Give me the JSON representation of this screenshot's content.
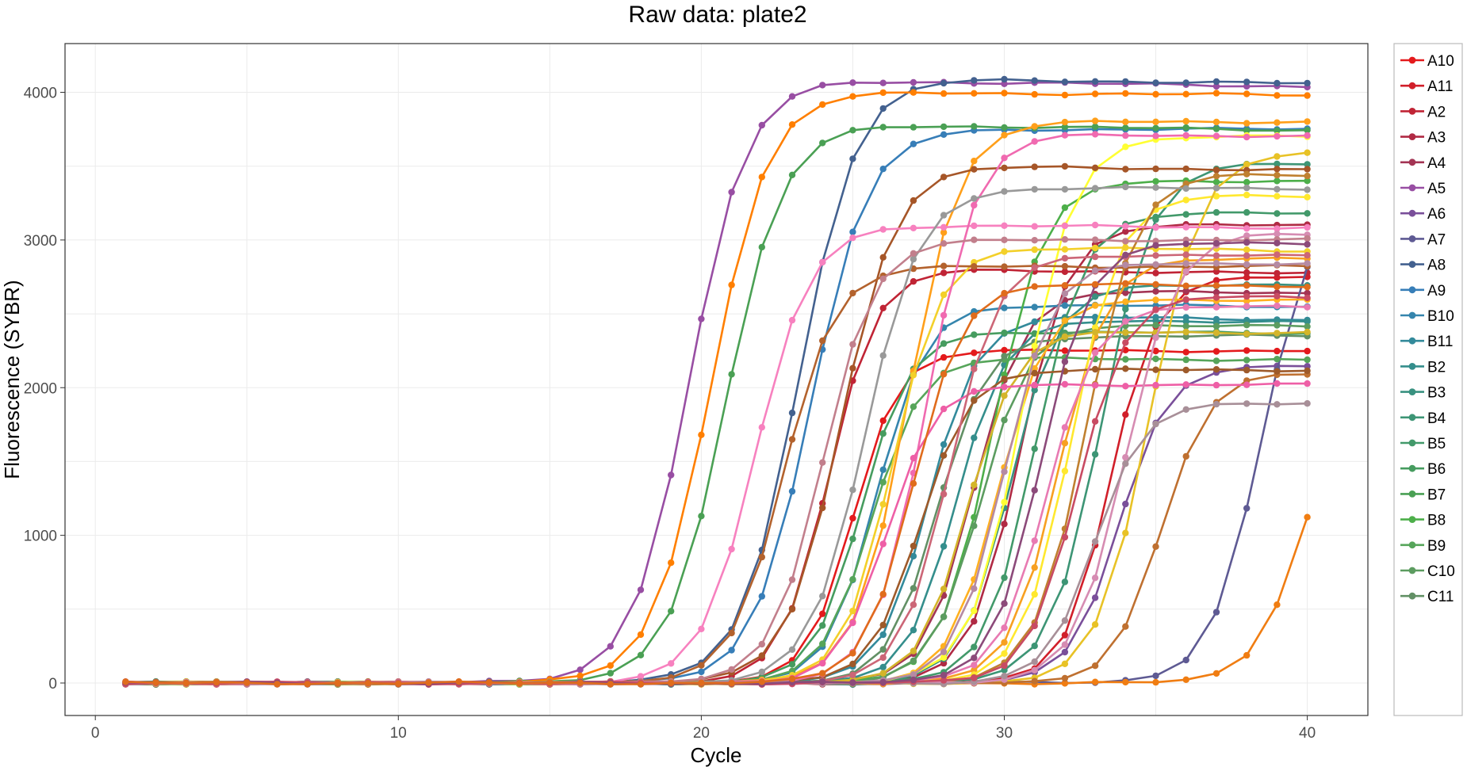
{
  "chart_data": {
    "type": "line",
    "title": "Raw data: plate2",
    "xlabel": "Cycle",
    "ylabel": "Fluorescence (SYBR)",
    "xlim": [
      -1,
      42
    ],
    "ylim": [
      -220,
      4330
    ],
    "xticks": [
      0,
      10,
      20,
      30,
      40
    ],
    "yticks": [
      0,
      1000,
      2000,
      3000,
      4000
    ],
    "grid": true,
    "legend_position": "right",
    "cycles": [
      1,
      2,
      3,
      4,
      5,
      6,
      7,
      8,
      9,
      10,
      11,
      12,
      13,
      14,
      15,
      16,
      17,
      18,
      19,
      20,
      21,
      22,
      23,
      24,
      25,
      26,
      27,
      28,
      29,
      30,
      31,
      32,
      33,
      34,
      35,
      36,
      37,
      38,
      39,
      40
    ],
    "curve_model": "logistic: baseline + plateau / (1 + exp(-(cycle - midpoint)/slope))",
    "series": [
      {
        "name": "A10",
        "color": "#e41a1c",
        "baseline": 0,
        "plateau": 2250,
        "midpoint": 25.0,
        "slope": 0.75
      },
      {
        "name": "A11",
        "color": "#d11f2a",
        "baseline": 0,
        "plateau": 2750,
        "midpoint": 33.5,
        "slope": 0.75
      },
      {
        "name": "A2",
        "color": "#c02435",
        "baseline": 0,
        "plateau": 2800,
        "midpoint": 24.2,
        "slope": 0.8
      },
      {
        "name": "A3",
        "color": "#b02a44",
        "baseline": 0,
        "plateau": 3100,
        "midpoint": 30.5,
        "slope": 0.8
      },
      {
        "name": "A4",
        "color": "#a33454",
        "baseline": 0,
        "plateau": 2650,
        "midpoint": 29.0,
        "slope": 0.8
      },
      {
        "name": "A5",
        "color": "#984ea3",
        "baseline": 0,
        "plateau": 4080,
        "midpoint": 19.6,
        "slope": 0.95
      },
      {
        "name": "A6",
        "color": "#7a4f9a",
        "baseline": 0,
        "plateau": 2150,
        "midpoint": 33.8,
        "slope": 0.8
      },
      {
        "name": "A7",
        "color": "#5e5a93",
        "baseline": 0,
        "plateau": 3300,
        "midpoint": 38.5,
        "slope": 0.85
      },
      {
        "name": "A8",
        "color": "#43618f",
        "baseline": 0,
        "plateau": 4090,
        "midpoint": 23.2,
        "slope": 0.95
      },
      {
        "name": "A9",
        "color": "#377eb8",
        "baseline": 0,
        "plateau": 3750,
        "midpoint": 23.6,
        "slope": 0.95
      },
      {
        "name": "B10",
        "color": "#3585ad",
        "baseline": 0,
        "plateau": 2560,
        "midpoint": 25.8,
        "slope": 0.8
      },
      {
        "name": "B11",
        "color": "#338a9b",
        "baseline": 0,
        "plateau": 2480,
        "midpoint": 27.5,
        "slope": 0.8
      },
      {
        "name": "B2",
        "color": "#348e8c",
        "baseline": 0,
        "plateau": 2450,
        "midpoint": 28.4,
        "slope": 0.8
      },
      {
        "name": "B3",
        "color": "#399180",
        "baseline": 0,
        "plateau": 2700,
        "midpoint": 30.2,
        "slope": 0.8
      },
      {
        "name": "B4",
        "color": "#3d9575",
        "baseline": 0,
        "plateau": 3520,
        "midpoint": 33.2,
        "slope": 0.85
      },
      {
        "name": "B5",
        "color": "#42996a",
        "baseline": 0,
        "plateau": 3180,
        "midpoint": 31.0,
        "slope": 0.8
      },
      {
        "name": "B6",
        "color": "#469c5f",
        "baseline": 0,
        "plateau": 2380,
        "midpoint": 25.3,
        "slope": 0.8
      },
      {
        "name": "B7",
        "color": "#4aa054",
        "baseline": 0,
        "plateau": 3780,
        "midpoint": 20.8,
        "slope": 0.95
      },
      {
        "name": "B8",
        "color": "#4daf4a",
        "baseline": 0,
        "plateau": 3400,
        "midpoint": 29.6,
        "slope": 0.85
      },
      {
        "name": "B9",
        "color": "#56a55a",
        "baseline": 0,
        "plateau": 2200,
        "midpoint": 25.6,
        "slope": 0.8
      },
      {
        "name": "C10",
        "color": "#5c9c60",
        "baseline": 0,
        "plateau": 2430,
        "midpoint": 29.2,
        "slope": 0.8
      },
      {
        "name": "C11",
        "color": "#629065",
        "baseline": 0,
        "plateau": 2350,
        "midpoint": 27.8,
        "slope": 0.8
      },
      {
        "name": "",
        "color": "#ff7f00",
        "baseline": 0,
        "plateau": 4000,
        "midpoint": 20.3,
        "slope": 0.95
      },
      {
        "name": "",
        "color": "#f07d12",
        "baseline": 0,
        "plateau": 2000,
        "midpoint": 39.8,
        "slope": 0.8
      },
      {
        "name": "",
        "color": "#ff9f1a",
        "baseline": 0,
        "plateau": 3800,
        "midpoint": 26.8,
        "slope": 0.85
      },
      {
        "name": "",
        "color": "#ffb020",
        "baseline": 0,
        "plateau": 2600,
        "midpoint": 29.8,
        "slope": 0.8
      },
      {
        "name": "",
        "color": "#f7a021",
        "baseline": 0,
        "plateau": 2880,
        "midpoint": 31.8,
        "slope": 0.8
      },
      {
        "name": "",
        "color": "#ffff33",
        "baseline": 0,
        "plateau": 3700,
        "midpoint": 30.6,
        "slope": 0.85
      },
      {
        "name": "",
        "color": "#ffe82e",
        "baseline": 0,
        "plateau": 3300,
        "midpoint": 32.2,
        "slope": 0.8
      },
      {
        "name": "",
        "color": "#f3d02a",
        "baseline": 0,
        "plateau": 2950,
        "midpoint": 26.3,
        "slope": 0.8
      },
      {
        "name": "",
        "color": "#e8c226",
        "baseline": 0,
        "plateau": 3600,
        "midpoint": 34.8,
        "slope": 0.85
      },
      {
        "name": "",
        "color": "#d4b52a",
        "baseline": 0,
        "plateau": 2380,
        "midpoint": 28.8,
        "slope": 0.8
      },
      {
        "name": "",
        "color": "#a65628",
        "baseline": 0,
        "plateau": 3500,
        "midpoint": 24.6,
        "slope": 0.9
      },
      {
        "name": "",
        "color": "#b3622d",
        "baseline": 0,
        "plateau": 2820,
        "midpoint": 22.7,
        "slope": 0.85
      },
      {
        "name": "",
        "color": "#bf7030",
        "baseline": 0,
        "plateau": 2100,
        "midpoint": 35.2,
        "slope": 0.8
      },
      {
        "name": "",
        "color": "#c08030",
        "baseline": 0,
        "plateau": 3450,
        "midpoint": 32.7,
        "slope": 0.85
      },
      {
        "name": "",
        "color": "#9e5a2a",
        "baseline": 0,
        "plateau": 2120,
        "midpoint": 27.2,
        "slope": 0.8
      },
      {
        "name": "",
        "color": "#f781bf",
        "baseline": 0,
        "plateau": 3100,
        "midpoint": 21.8,
        "slope": 0.9
      },
      {
        "name": "",
        "color": "#f06ab0",
        "baseline": 0,
        "plateau": 3720,
        "midpoint": 27.4,
        "slope": 0.85
      },
      {
        "name": "",
        "color": "#ee5fa6",
        "baseline": 0,
        "plateau": 2020,
        "midpoint": 26.1,
        "slope": 0.8
      },
      {
        "name": "",
        "color": "#e87ab2",
        "baseline": 0,
        "plateau": 2550,
        "midpoint": 31.4,
        "slope": 0.8
      },
      {
        "name": "",
        "color": "#d68cb2",
        "baseline": 0,
        "plateau": 3050,
        "midpoint": 34.0,
        "slope": 0.85
      },
      {
        "name": "",
        "color": "#999999",
        "baseline": 0,
        "plateau": 3350,
        "midpoint": 25.4,
        "slope": 0.9
      },
      {
        "name": "",
        "color": "#a88f98",
        "baseline": 0,
        "plateau": 1900,
        "midpoint": 33.0,
        "slope": 0.8
      },
      {
        "name": "",
        "color": "#b58aa3",
        "baseline": 0,
        "plateau": 2850,
        "midpoint": 30.0,
        "slope": 0.8
      },
      {
        "name": "",
        "color": "#c27f8c",
        "baseline": 0,
        "plateau": 3000,
        "midpoint": 24.0,
        "slope": 0.85
      },
      {
        "name": "",
        "color": "#cc6677",
        "baseline": 0,
        "plateau": 2900,
        "midpoint": 28.2,
        "slope": 0.8
      },
      {
        "name": "",
        "color": "#c84b63",
        "baseline": 0,
        "plateau": 2620,
        "midpoint": 32.4,
        "slope": 0.8
      },
      {
        "name": "",
        "color": "#8c4a7a",
        "baseline": 0,
        "plateau": 2980,
        "midpoint": 31.2,
        "slope": 0.8
      },
      {
        "name": "",
        "color": "#e06c1c",
        "baseline": 0,
        "plateau": 2700,
        "midpoint": 27.0,
        "slope": 0.8
      }
    ]
  }
}
